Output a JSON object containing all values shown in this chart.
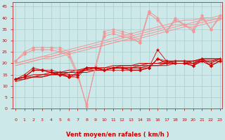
{
  "bg_color": "#cce8e8",
  "grid_color": "#aacccc",
  "line_color_dark": "#cc0000",
  "line_color_light": "#ee9999",
  "xlabel": "Vent moyen/en rafales ( km/h )",
  "xlabel_color": "#cc0000",
  "xlabel_fontsize": 6,
  "tick_color": "#cc0000",
  "yticks": [
    0,
    5,
    10,
    15,
    20,
    25,
    30,
    35,
    40,
    45
  ],
  "xticks": [
    0,
    1,
    2,
    3,
    4,
    5,
    6,
    7,
    8,
    9,
    10,
    11,
    12,
    13,
    14,
    15,
    16,
    17,
    18,
    19,
    20,
    21,
    22,
    23
  ],
  "ylim": [
    0,
    47
  ],
  "xlim": [
    -0.3,
    23.3
  ],
  "series_light": [
    [
      21,
      25,
      27,
      27,
      27,
      26,
      24,
      15,
      1,
      19,
      33,
      34,
      33,
      32,
      29,
      43,
      40,
      34,
      40,
      37,
      35,
      41,
      35,
      41
    ],
    [
      21,
      25,
      27,
      27,
      27,
      27,
      25,
      16,
      1,
      19,
      34,
      35,
      34,
      33,
      30,
      43,
      40,
      34,
      40,
      37,
      35,
      41,
      35,
      41
    ],
    [
      21,
      24,
      26,
      26,
      26,
      25,
      24,
      15,
      2,
      18,
      32,
      33,
      32,
      31,
      29,
      42,
      39,
      34,
      39,
      37,
      34,
      40,
      35,
      40
    ],
    [
      21,
      24,
      26,
      26,
      26,
      25,
      23,
      14,
      2,
      18,
      32,
      33,
      32,
      31,
      29,
      42,
      39,
      34,
      39,
      37,
      34,
      40,
      35,
      40
    ]
  ],
  "series_dark": [
    [
      13,
      15,
      18,
      17,
      17,
      16,
      14,
      16,
      18,
      18,
      17,
      18,
      18,
      18,
      18,
      18,
      26,
      21,
      21,
      21,
      20,
      22,
      20,
      22
    ],
    [
      13,
      14,
      17,
      17,
      16,
      15,
      15,
      15,
      18,
      18,
      17,
      18,
      18,
      17,
      17,
      18,
      22,
      21,
      20,
      20,
      19,
      22,
      19,
      21
    ],
    [
      13,
      14,
      17,
      17,
      16,
      15,
      14,
      15,
      18,
      18,
      17,
      18,
      18,
      17,
      17,
      18,
      22,
      20,
      20,
      20,
      19,
      21,
      19,
      21
    ],
    [
      13,
      14,
      17,
      17,
      16,
      15,
      14,
      14,
      18,
      18,
      17,
      17,
      17,
      17,
      17,
      18,
      22,
      20,
      20,
      20,
      19,
      21,
      19,
      21
    ]
  ],
  "trend_light": [
    [
      20,
      21,
      22,
      23,
      24,
      25,
      26,
      27,
      28,
      29,
      30,
      31,
      32,
      33,
      34,
      35,
      36,
      37,
      38,
      39,
      39,
      40,
      40,
      41
    ],
    [
      20,
      21,
      22,
      23,
      23,
      24,
      25,
      26,
      27,
      28,
      29,
      30,
      31,
      32,
      33,
      34,
      35,
      36,
      37,
      37,
      38,
      39,
      39,
      40
    ],
    [
      19,
      20,
      21,
      22,
      23,
      24,
      25,
      26,
      27,
      27,
      28,
      29,
      30,
      31,
      32,
      33,
      34,
      35,
      36,
      37,
      37,
      38,
      39,
      40
    ],
    [
      19,
      20,
      21,
      22,
      22,
      23,
      24,
      25,
      26,
      27,
      28,
      29,
      30,
      30,
      31,
      32,
      33,
      34,
      35,
      36,
      36,
      37,
      38,
      39
    ]
  ],
  "trend_dark": [
    [
      13,
      14,
      15,
      15,
      16,
      16,
      17,
      17,
      18,
      18,
      18,
      19,
      19,
      19,
      20,
      20,
      20,
      21,
      21,
      21,
      21,
      22,
      22,
      22
    ],
    [
      13,
      14,
      14,
      15,
      15,
      16,
      16,
      17,
      17,
      18,
      18,
      18,
      19,
      19,
      19,
      20,
      20,
      20,
      21,
      21,
      21,
      22,
      22,
      22
    ],
    [
      13,
      13,
      14,
      14,
      15,
      15,
      16,
      16,
      17,
      17,
      17,
      18,
      18,
      18,
      19,
      19,
      19,
      20,
      20,
      20,
      21,
      21,
      21,
      22
    ],
    [
      12,
      13,
      14,
      14,
      15,
      15,
      16,
      16,
      16,
      17,
      17,
      18,
      18,
      18,
      18,
      19,
      19,
      19,
      20,
      20,
      20,
      21,
      21,
      21
    ]
  ]
}
